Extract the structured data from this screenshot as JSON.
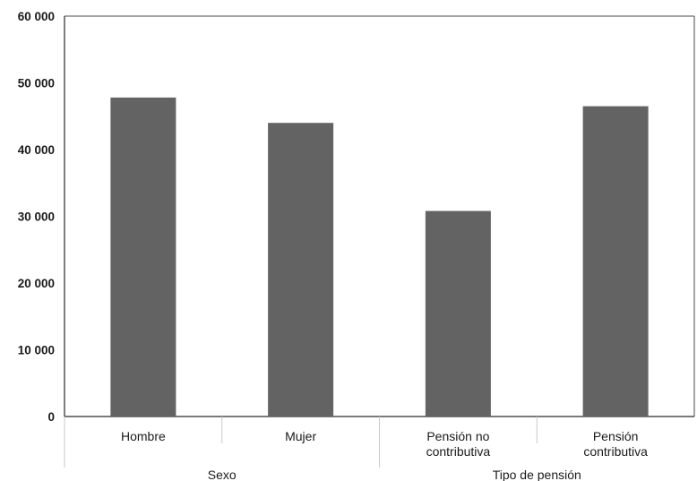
{
  "chart_data": {
    "type": "bar",
    "title": "",
    "xlabel": "",
    "ylabel": "",
    "ylim": [
      0,
      60000
    ],
    "y_ticks": [
      0,
      10000,
      20000,
      30000,
      40000,
      50000,
      60000
    ],
    "y_tick_labels": [
      "0",
      "10 000",
      "20 000",
      "30 000",
      "40 000",
      "50 000",
      "60 000"
    ],
    "categories": [
      [
        "Hombre"
      ],
      [
        "Mujer"
      ],
      [
        "Pensión no",
        "contributiva"
      ],
      [
        "Pensión",
        "contributiva"
      ]
    ],
    "values": [
      47800,
      44000,
      30800,
      46500
    ],
    "groups": [
      {
        "label": "Sexo",
        "span": [
          0,
          1
        ]
      },
      {
        "label": "Tipo de pensión",
        "span": [
          2,
          3
        ]
      }
    ],
    "bar_color": "#636363",
    "grid": false,
    "legend": "none"
  }
}
